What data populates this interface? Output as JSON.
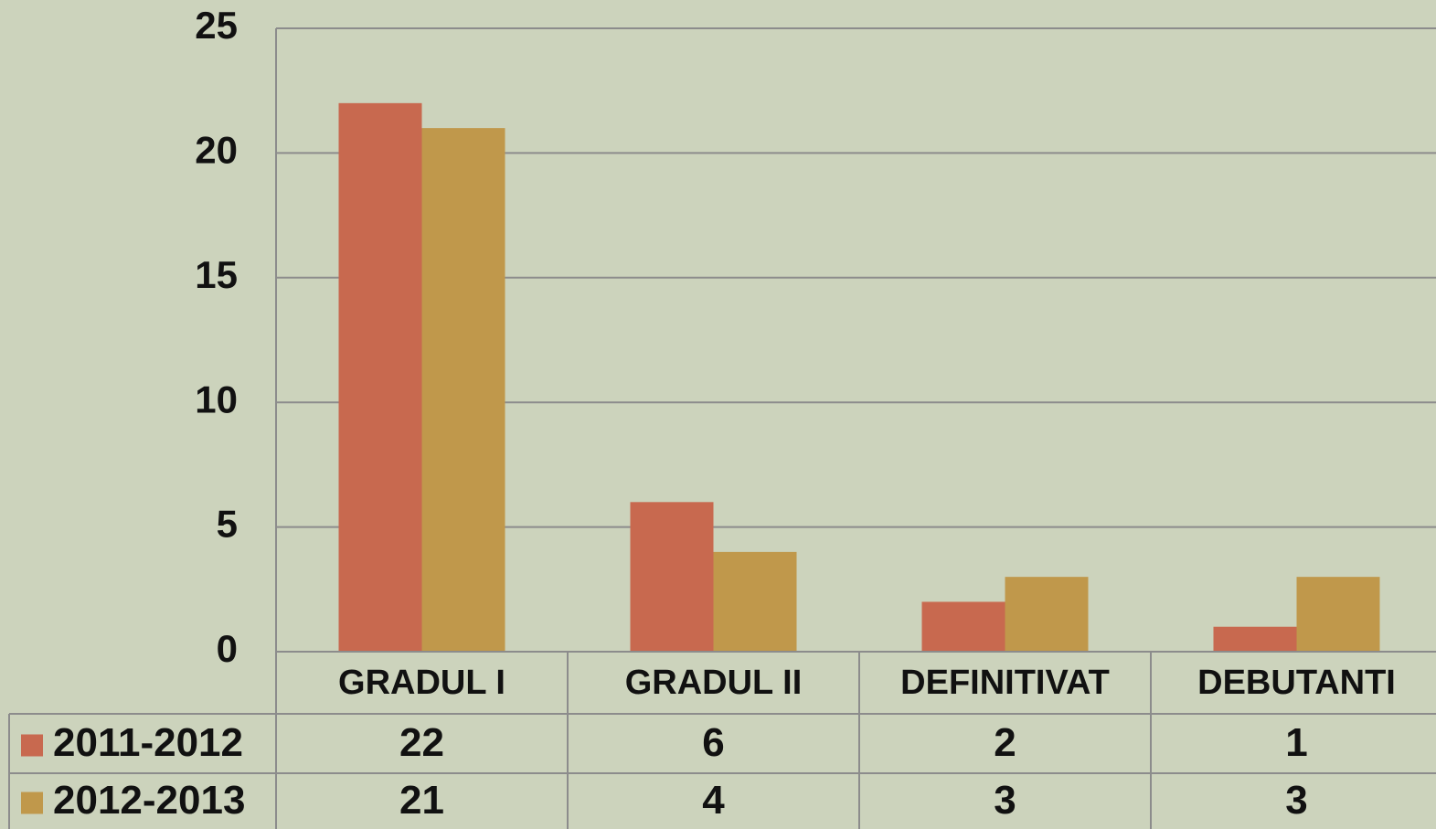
{
  "chart_data": {
    "type": "bar",
    "categories": [
      "GRADUL I",
      "GRADUL II",
      "DEFINITIVAT",
      "DEBUTANTI"
    ],
    "series": [
      {
        "name": "2011-2012",
        "color": "#c8694f",
        "values": [
          22,
          6,
          2,
          1
        ]
      },
      {
        "name": "2012-2013",
        "color": "#c0984b",
        "values": [
          21,
          4,
          3,
          3
        ]
      }
    ],
    "ylim": [
      0,
      25
    ],
    "yticks": [
      0,
      5,
      10,
      15,
      20,
      25
    ],
    "grid": true,
    "data_table": true
  }
}
